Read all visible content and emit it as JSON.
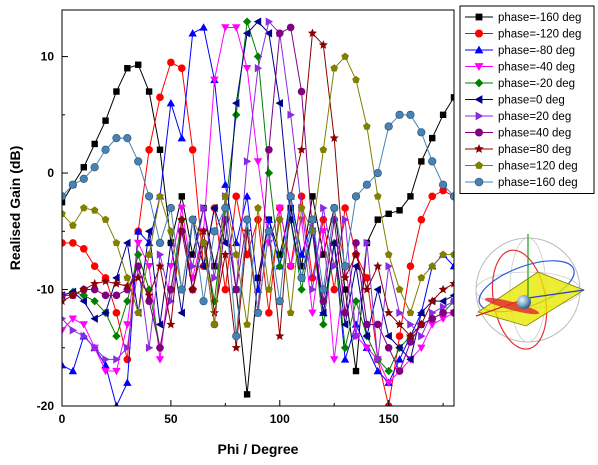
{
  "chart_data": {
    "type": "line",
    "xlabel": "Phi / Degree",
    "ylabel": "Realised Gain (dB)",
    "xlim": [
      0,
      180
    ],
    "ylim": [
      -20,
      14
    ],
    "xticks": [
      0,
      50,
      100,
      150
    ],
    "yticks": [
      -20,
      -10,
      0,
      10
    ],
    "grid": false,
    "legend_position": "top-right",
    "inset": "3d-radiation-pattern-sphere",
    "series": [
      {
        "name": "phase=-160 deg",
        "color": "#000000",
        "marker": "square",
        "x": [
          0,
          5,
          10,
          15,
          20,
          25,
          30,
          35,
          40,
          45,
          50,
          55,
          60,
          65,
          70,
          75,
          80,
          85,
          90,
          95,
          100,
          105,
          110,
          115,
          120,
          125,
          130,
          135,
          140,
          145,
          150,
          155,
          160,
          165,
          170,
          175,
          180
        ],
        "y": [
          -2.5,
          -1,
          0.5,
          2.5,
          4.5,
          7,
          9,
          9.3,
          7,
          2,
          -6,
          -2,
          -7,
          -3,
          -8,
          -4,
          -10,
          -19,
          -9,
          -4,
          -7,
          -3,
          -8,
          -2,
          -7,
          -3,
          -10,
          -17,
          -6,
          -4,
          -3.5,
          -3.2,
          -2,
          1,
          3,
          5,
          6.5
        ]
      },
      {
        "name": "phase=-120 deg",
        "color": "#ff0000",
        "marker": "circle",
        "x": [
          0,
          5,
          10,
          15,
          20,
          25,
          30,
          35,
          40,
          45,
          50,
          55,
          60,
          65,
          70,
          75,
          80,
          85,
          90,
          95,
          100,
          105,
          110,
          115,
          120,
          125,
          130,
          135,
          140,
          145,
          150,
          155,
          160,
          165,
          170,
          175,
          180
        ],
        "y": [
          -6,
          -6,
          -6.5,
          -8,
          -9,
          -12,
          -16,
          -5,
          2,
          6.5,
          9.5,
          9,
          2,
          -8,
          -3,
          -10,
          -2,
          -7,
          -4,
          -12,
          -3,
          -8,
          -2,
          -9,
          -4,
          -10,
          -3,
          -7,
          -9,
          -16,
          -20,
          -14,
          -8,
          -4,
          -2,
          -1.5,
          -2
        ]
      },
      {
        "name": "phase=-80 deg",
        "color": "#0000ff",
        "marker": "triangle-up",
        "x": [
          0,
          5,
          10,
          15,
          20,
          25,
          30,
          35,
          40,
          45,
          50,
          55,
          60,
          65,
          70,
          75,
          80,
          85,
          90,
          95,
          100,
          105,
          110,
          115,
          120,
          125,
          130,
          135,
          140,
          145,
          150,
          155,
          160,
          165,
          170,
          175,
          180
        ],
        "y": [
          -16.5,
          -17,
          -14,
          -15,
          -16.5,
          -20,
          -18,
          -5,
          -6,
          -2,
          6,
          3,
          12,
          12.5,
          8,
          -1,
          -6,
          -2,
          -10,
          -4,
          -8,
          -2,
          -7,
          -4,
          -12,
          -6,
          -16,
          -13,
          -15,
          -17,
          -18,
          -16,
          -14,
          -12,
          -8,
          -7,
          -8
        ]
      },
      {
        "name": "phase=-40 deg",
        "color": "#ff00ff",
        "marker": "triangle-down",
        "x": [
          0,
          5,
          10,
          15,
          20,
          25,
          30,
          35,
          40,
          45,
          50,
          55,
          60,
          65,
          70,
          75,
          80,
          85,
          90,
          95,
          100,
          105,
          110,
          115,
          120,
          125,
          130,
          135,
          140,
          145,
          150,
          155,
          160,
          165,
          170,
          175,
          180
        ],
        "y": [
          -13.5,
          -12.5,
          -13,
          -15,
          -17,
          -17,
          -13,
          -6,
          -8,
          -16,
          -8,
          -3,
          -9,
          -5,
          8,
          12.5,
          12.5,
          9,
          1,
          -6,
          -3,
          -8,
          -4,
          -12,
          -5,
          -16,
          -8,
          -14,
          -15,
          -16,
          -18,
          -17,
          -16,
          -15,
          -13,
          -12.5,
          -12
        ]
      },
      {
        "name": "phase=-20 deg",
        "color": "#008000",
        "marker": "diamond",
        "x": [
          0,
          5,
          10,
          15,
          20,
          25,
          30,
          35,
          40,
          45,
          50,
          55,
          60,
          65,
          70,
          75,
          80,
          85,
          90,
          95,
          100,
          105,
          110,
          115,
          120,
          125,
          130,
          135,
          140,
          145,
          150,
          155,
          160,
          165,
          170,
          175,
          180
        ],
        "y": [
          -10.5,
          -10.2,
          -10.5,
          -11,
          -12,
          -14,
          -11,
          -7,
          -10,
          -15,
          -10,
          -4,
          -10,
          -6,
          -11,
          -3,
          5,
          13,
          10,
          0,
          -8,
          -4,
          -10,
          -5,
          -13,
          -6,
          -15,
          -11,
          -14,
          -16,
          -17,
          -15,
          -14,
          -13,
          -12.5,
          -12,
          -11
        ]
      },
      {
        "name": "phase=0 deg",
        "color": "#00008b",
        "marker": "triangle-left",
        "x": [
          0,
          5,
          10,
          15,
          20,
          25,
          30,
          35,
          40,
          45,
          50,
          55,
          60,
          65,
          70,
          75,
          80,
          85,
          90,
          95,
          100,
          105,
          110,
          115,
          120,
          125,
          130,
          135,
          140,
          145,
          150,
          155,
          160,
          165,
          170,
          175,
          180
        ],
        "y": [
          -10.5,
          -10.2,
          -11,
          -12.5,
          -12,
          -9,
          -6,
          -12,
          -5,
          -13,
          -6,
          -12,
          -4,
          -8,
          -3,
          -6,
          6,
          12,
          13,
          12,
          6,
          -4,
          -9,
          -5,
          -12,
          -6,
          -13,
          -8,
          -14,
          -10,
          -14,
          -15,
          -16,
          -12,
          -11,
          -11,
          -10.5
        ]
      },
      {
        "name": "phase=20 deg",
        "color": "#8a2be2",
        "marker": "triangle-right",
        "x": [
          0,
          5,
          10,
          15,
          20,
          25,
          30,
          35,
          40,
          45,
          50,
          55,
          60,
          65,
          70,
          75,
          80,
          85,
          90,
          95,
          100,
          105,
          110,
          115,
          120,
          125,
          130,
          135,
          140,
          145,
          150,
          155,
          160,
          165,
          170,
          175,
          180
        ],
        "y": [
          -12.5,
          -13.5,
          -14,
          -15,
          -16,
          -16,
          -15,
          -8,
          -15,
          -7,
          -11,
          -5,
          -8,
          -3,
          -9,
          -2,
          -10,
          1,
          9,
          13,
          12,
          5,
          -3,
          -10,
          -3,
          -8,
          -4,
          -14,
          -6,
          -16,
          -8,
          -12,
          -13,
          -14,
          -12,
          -11.5,
          -11
        ]
      },
      {
        "name": "phase=40 deg",
        "color": "#800080",
        "marker": "circle",
        "x": [
          0,
          5,
          10,
          15,
          20,
          25,
          30,
          35,
          40,
          45,
          50,
          55,
          60,
          65,
          70,
          75,
          80,
          85,
          90,
          95,
          100,
          105,
          110,
          115,
          120,
          125,
          130,
          135,
          140,
          145,
          150,
          155,
          160,
          165,
          170,
          175,
          180
        ],
        "y": [
          -10.5,
          -10.5,
          -10,
          -10,
          -10.5,
          -10.5,
          -10,
          -8,
          -11,
          -15,
          -10,
          -5,
          -10,
          -6,
          -13,
          -4,
          -10,
          -4,
          -12,
          2,
          12,
          12.5,
          7,
          -5,
          -11,
          -4,
          -12,
          -6,
          -13,
          -13,
          -15,
          -17,
          -14.5,
          -13,
          -12.5,
          -12,
          -12
        ]
      },
      {
        "name": "phase=80 deg",
        "color": "#8b0000",
        "marker": "star",
        "x": [
          0,
          5,
          10,
          15,
          20,
          25,
          30,
          35,
          40,
          45,
          50,
          55,
          60,
          65,
          70,
          75,
          80,
          85,
          90,
          95,
          100,
          105,
          110,
          115,
          120,
          125,
          130,
          135,
          140,
          145,
          150,
          155,
          160,
          165,
          170,
          175,
          180
        ],
        "y": [
          -11,
          -10.5,
          -10,
          -9.5,
          -9.3,
          -9.5,
          -9.7,
          -9,
          -10.5,
          -8,
          -13,
          -4,
          -10,
          -5,
          -12,
          -7,
          -15,
          -5,
          -12,
          -5,
          -14,
          -2,
          2,
          12,
          11,
          3,
          -9,
          -7,
          -10,
          -8,
          -12,
          -13,
          -14,
          -13,
          -11,
          -10,
          -9.5
        ]
      },
      {
        "name": "phase=120 deg",
        "color": "#808000",
        "marker": "pentagon",
        "x": [
          0,
          5,
          10,
          15,
          20,
          25,
          30,
          35,
          40,
          45,
          50,
          55,
          60,
          65,
          70,
          75,
          80,
          85,
          90,
          95,
          100,
          105,
          110,
          115,
          120,
          125,
          130,
          135,
          140,
          145,
          150,
          155,
          160,
          165,
          170,
          175,
          180
        ],
        "y": [
          -3.5,
          -4.5,
          -3,
          -3.2,
          -4,
          -6,
          -9,
          -12,
          -7,
          -2,
          -5,
          -10,
          -4,
          -6,
          -13,
          -2,
          -7,
          -13,
          -3,
          -10,
          -4,
          -12,
          -3,
          -5,
          2,
          9,
          10,
          8,
          4,
          -2,
          -7,
          -10,
          -12,
          -9,
          -8,
          -7,
          -7
        ]
      },
      {
        "name": "phase=160 deg",
        "color": "#4682b4",
        "marker": "sphere",
        "x": [
          0,
          5,
          10,
          15,
          20,
          25,
          30,
          35,
          40,
          45,
          50,
          55,
          60,
          65,
          70,
          75,
          80,
          85,
          90,
          95,
          100,
          105,
          110,
          115,
          120,
          125,
          130,
          135,
          140,
          145,
          150,
          155,
          160,
          165,
          170,
          175,
          180
        ],
        "y": [
          -2,
          -1,
          -0.5,
          0.5,
          2,
          3,
          3,
          1,
          -2,
          -6,
          -3,
          -10,
          -4,
          -11,
          -5,
          -3,
          -14,
          -4,
          -12,
          -5,
          -11,
          -2,
          -9,
          -4,
          -10,
          -3,
          -8,
          -2,
          -1,
          0,
          4,
          5,
          5,
          3.5,
          1,
          -1,
          -2
        ]
      }
    ]
  }
}
